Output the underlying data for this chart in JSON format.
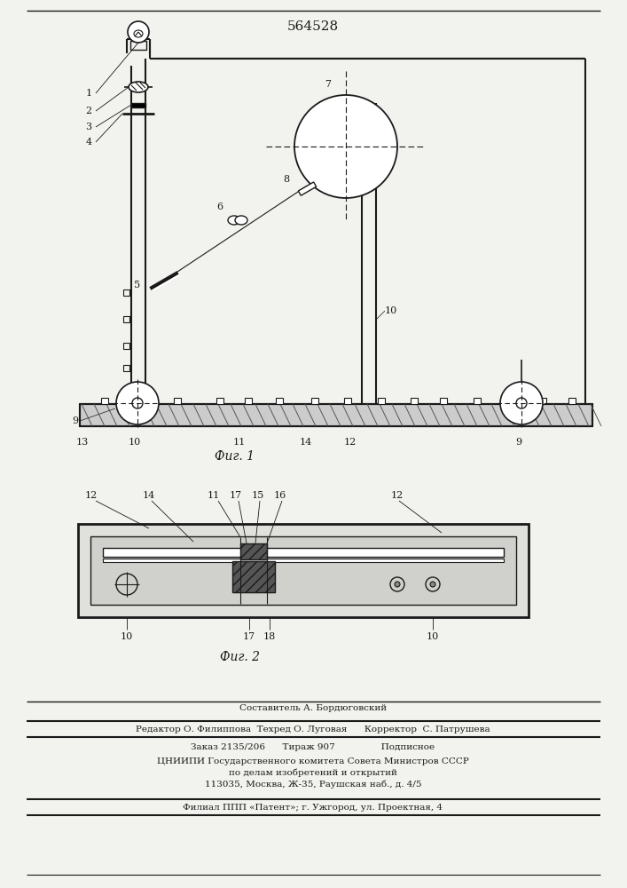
{
  "title": "564528",
  "bg_color": "#f2f2ee",
  "line_color": "#1a1a1a",
  "fig1_caption": "Фиг. 1",
  "fig2_caption": "Фиг. 2",
  "footer_lines": [
    "Составитель А. Бордюговский",
    "Редактор О. Филиппова  Техред О. Луговая      Корректор  С. Патрушева",
    "Заказ 2135/206      Тираж 907                Подписное",
    "ЦНИИПИ Государственного комитета Совета Министров СССР",
    "по делам изобретений и открытий",
    "113035, Москва, Ж-35, Раушская наб., д. 4/5",
    "Филиал ППП «Патент»; г. Ужгород, ул. Проектная, 4"
  ]
}
